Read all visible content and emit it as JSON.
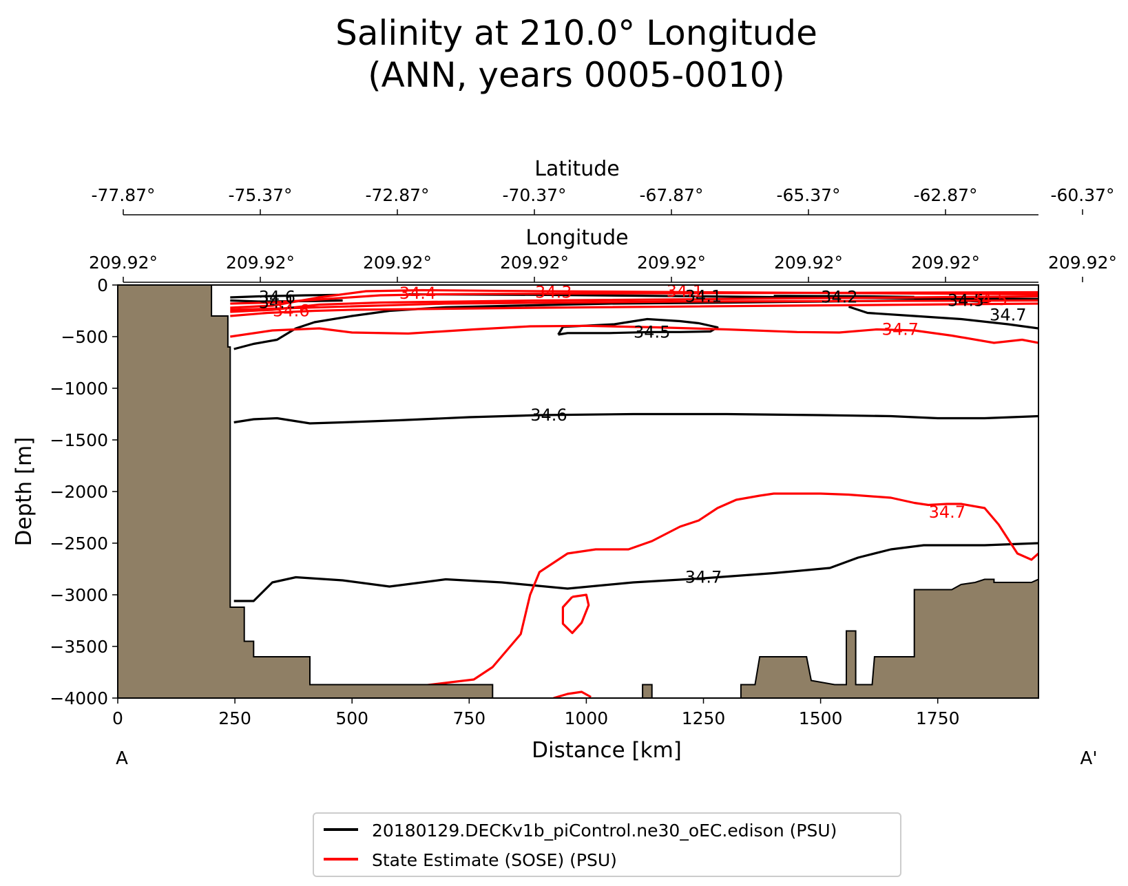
{
  "title_line1": "Salinity at 210.0° Longitude",
  "title_line2": "(ANN, years 0005-0010)",
  "chart_data": {
    "type": "contour",
    "xlabel": "Distance [km]",
    "ylabel": "Depth [m]",
    "xlim": [
      0,
      1965
    ],
    "ylim": [
      -4000,
      0
    ],
    "xticks": [
      0,
      250,
      500,
      750,
      1000,
      1250,
      1500,
      1750
    ],
    "yticks": [
      0,
      -500,
      -1000,
      -1500,
      -2000,
      -2500,
      -3000,
      -3500,
      -4000
    ],
    "start_label": "A",
    "end_label": "A'",
    "latitude_axis": {
      "label": "Latitude",
      "ticks": [
        "-77.87°",
        "-75.37°",
        "-72.87°",
        "-70.37°",
        "-67.87°",
        "-65.37°",
        "-62.87°",
        "-60.37°"
      ]
    },
    "longitude_axis": {
      "label": "Longitude",
      "ticks": [
        "209.92°",
        "209.92°",
        "209.92°",
        "209.92°",
        "209.92°",
        "209.92°",
        "209.92°",
        "209.92°"
      ]
    },
    "legend": [
      {
        "label": "20180129.DECKv1b_piControl.ne30_oEC.edison (PSU)",
        "color": "#000000"
      },
      {
        "label": "State Estimate (SOSE) (PSU)",
        "color": "#ff0000"
      }
    ],
    "colors": {
      "model": "#000000",
      "obs": "#ff0000",
      "land": "#8f7f65"
    },
    "bathymetry": [
      [
        0,
        0
      ],
      [
        200,
        0
      ],
      [
        200,
        -300
      ],
      [
        235,
        -300
      ],
      [
        235,
        -600
      ],
      [
        240,
        -600
      ],
      [
        240,
        -3120
      ],
      [
        270,
        -3120
      ],
      [
        270,
        -3450
      ],
      [
        290,
        -3450
      ],
      [
        290,
        -3600
      ],
      [
        410,
        -3600
      ],
      [
        410,
        -3870
      ],
      [
        800,
        -3870
      ],
      [
        800,
        -4000
      ],
      [
        1120,
        -4000
      ],
      [
        1120,
        -3870
      ],
      [
        1140,
        -3870
      ],
      [
        1140,
        -4000
      ],
      [
        1330,
        -4000
      ],
      [
        1330,
        -3870
      ],
      [
        1360,
        -3870
      ],
      [
        1370,
        -3600
      ],
      [
        1470,
        -3600
      ],
      [
        1480,
        -3830
      ],
      [
        1530,
        -3870
      ],
      [
        1555,
        -3870
      ],
      [
        1555,
        -3350
      ],
      [
        1575,
        -3350
      ],
      [
        1575,
        -3870
      ],
      [
        1610,
        -3870
      ],
      [
        1615,
        -3600
      ],
      [
        1700,
        -3600
      ],
      [
        1700,
        -2950
      ],
      [
        1780,
        -2950
      ],
      [
        1800,
        -2900
      ],
      [
        1830,
        -2880
      ],
      [
        1850,
        -2850
      ],
      [
        1870,
        -2850
      ],
      [
        1870,
        -2880
      ],
      [
        1950,
        -2880
      ],
      [
        1965,
        -2850
      ],
      [
        1965,
        -4000
      ],
      [
        0,
        -4000
      ]
    ],
    "model_contours": [
      {
        "level": 34.6,
        "label": "34.6",
        "label_at": [
          920,
          -1260
        ],
        "points": [
          [
            248,
            -1330
          ],
          [
            290,
            -1300
          ],
          [
            340,
            -1290
          ],
          [
            410,
            -1340
          ],
          [
            480,
            -1330
          ],
          [
            600,
            -1310
          ],
          [
            750,
            -1280
          ],
          [
            900,
            -1260
          ],
          [
            1100,
            -1250
          ],
          [
            1300,
            -1250
          ],
          [
            1500,
            -1260
          ],
          [
            1650,
            -1270
          ],
          [
            1750,
            -1290
          ],
          [
            1850,
            -1290
          ],
          [
            1965,
            -1270
          ]
        ]
      },
      {
        "level": 34.7,
        "label": "34.7",
        "label_at": [
          1250,
          -2830
        ],
        "points": [
          [
            248,
            -3060
          ],
          [
            290,
            -3060
          ],
          [
            330,
            -2880
          ],
          [
            380,
            -2830
          ],
          [
            480,
            -2860
          ],
          [
            580,
            -2920
          ],
          [
            700,
            -2850
          ],
          [
            820,
            -2880
          ],
          [
            960,
            -2940
          ],
          [
            1100,
            -2880
          ],
          [
            1250,
            -2840
          ],
          [
            1400,
            -2790
          ],
          [
            1520,
            -2740
          ],
          [
            1580,
            -2640
          ],
          [
            1650,
            -2560
          ],
          [
            1720,
            -2520
          ],
          [
            1850,
            -2520
          ],
          [
            1965,
            -2500
          ]
        ]
      },
      {
        "level": 34.5,
        "label": "34.5",
        "label_at": [
          1140,
          -455
        ],
        "points": [
          [
            940,
            -480
          ],
          [
            950,
            -405
          ],
          [
            1060,
            -380
          ],
          [
            1130,
            -330
          ],
          [
            1200,
            -350
          ],
          [
            1240,
            -370
          ],
          [
            1280,
            -410
          ],
          [
            1265,
            -450
          ],
          [
            1200,
            -455
          ],
          [
            1140,
            -455
          ],
          [
            1050,
            -465
          ],
          [
            960,
            -465
          ],
          [
            940,
            -480
          ]
        ]
      },
      {
        "level": 34.5,
        "label": "",
        "points": [
          [
            248,
            -620
          ],
          [
            290,
            -570
          ],
          [
            340,
            -530
          ],
          [
            380,
            -420
          ],
          [
            420,
            -360
          ],
          [
            500,
            -300
          ],
          [
            580,
            -250
          ],
          [
            700,
            -215
          ],
          [
            850,
            -200
          ],
          [
            1050,
            -180
          ],
          [
            1300,
            -170
          ],
          [
            1500,
            -160
          ],
          [
            1700,
            -150
          ],
          [
            1965,
            -140
          ]
        ]
      },
      {
        "level": 34.6,
        "label": "34.6",
        "label_at": [
          340,
          -115
        ],
        "points": [
          [
            240,
            -120
          ],
          [
            300,
            -110
          ],
          [
            400,
            -100
          ],
          [
            470,
            -95
          ]
        ]
      },
      {
        "level": 34.1,
        "label": "34.1",
        "label_at": [
          340,
          -170
        ],
        "points": [
          [
            240,
            -150
          ],
          [
            300,
            -160
          ],
          [
            420,
            -155
          ],
          [
            480,
            -150
          ]
        ]
      },
      {
        "level": 34.1,
        "label": "34.1",
        "label_at": [
          1250,
          -110
        ],
        "points": [
          [
            620,
            -90
          ],
          [
            900,
            -95
          ],
          [
            1250,
            -110
          ],
          [
            1600,
            -125
          ],
          [
            1965,
            -135
          ]
        ]
      },
      {
        "level": 34.2,
        "label": "34.2",
        "label_at": [
          1540,
          -115
        ],
        "points": [
          [
            1400,
            -105
          ],
          [
            1600,
            -110
          ],
          [
            1700,
            -115
          ]
        ]
      },
      {
        "level": 34.5,
        "label": "34.5",
        "label_at": [
          1810,
          -150
        ],
        "points": [
          [
            1700,
            -140
          ],
          [
            1800,
            -150
          ],
          [
            1860,
            -165
          ]
        ]
      },
      {
        "level": 34.7,
        "label": "34.7",
        "label_at": [
          1900,
          -290
        ],
        "points": [
          [
            1560,
            -210
          ],
          [
            1600,
            -270
          ],
          [
            1700,
            -300
          ],
          [
            1800,
            -330
          ],
          [
            1900,
            -380
          ],
          [
            1965,
            -420
          ]
        ]
      }
    ],
    "obs_contours": [
      {
        "level": 34.7,
        "label": "34.7",
        "label_at": [
          1670,
          -430
        ],
        "points": [
          [
            240,
            -500
          ],
          [
            330,
            -440
          ],
          [
            430,
            -420
          ],
          [
            500,
            -460
          ],
          [
            620,
            -470
          ],
          [
            760,
            -430
          ],
          [
            880,
            -400
          ],
          [
            1000,
            -395
          ],
          [
            1150,
            -410
          ],
          [
            1300,
            -430
          ],
          [
            1450,
            -455
          ],
          [
            1540,
            -460
          ],
          [
            1620,
            -430
          ],
          [
            1700,
            -440
          ],
          [
            1780,
            -490
          ],
          [
            1870,
            -560
          ],
          [
            1930,
            -530
          ],
          [
            1965,
            -560
          ]
        ]
      },
      {
        "level": 34.7,
        "label": "34.7",
        "label_at": [
          1770,
          -2200
        ],
        "points": [
          [
            530,
            -4000
          ],
          [
            650,
            -3880
          ],
          [
            760,
            -3820
          ],
          [
            800,
            -3700
          ],
          [
            860,
            -3380
          ],
          [
            880,
            -3000
          ],
          [
            900,
            -2780
          ],
          [
            960,
            -2600
          ],
          [
            1020,
            -2560
          ],
          [
            1090,
            -2560
          ],
          [
            1140,
            -2480
          ],
          [
            1200,
            -2340
          ],
          [
            1240,
            -2280
          ],
          [
            1280,
            -2160
          ],
          [
            1320,
            -2080
          ],
          [
            1370,
            -2040
          ],
          [
            1400,
            -2020
          ],
          [
            1500,
            -2020
          ],
          [
            1560,
            -2030
          ],
          [
            1650,
            -2060
          ],
          [
            1700,
            -2110
          ],
          [
            1730,
            -2130
          ],
          [
            1770,
            -2120
          ],
          [
            1800,
            -2120
          ],
          [
            1850,
            -2160
          ],
          [
            1880,
            -2320
          ],
          [
            1920,
            -2600
          ],
          [
            1950,
            -2660
          ],
          [
            1965,
            -2600
          ]
        ]
      },
      {
        "level": 34.7,
        "label": "",
        "points": [
          [
            970,
            -3020
          ],
          [
            1000,
            -3000
          ],
          [
            1005,
            -3100
          ],
          [
            990,
            -3270
          ],
          [
            970,
            -3370
          ],
          [
            950,
            -3280
          ],
          [
            950,
            -3120
          ],
          [
            970,
            -3020
          ]
        ]
      },
      {
        "level": 34.7,
        "label": "",
        "points": [
          [
            930,
            -4000
          ],
          [
            960,
            -3960
          ],
          [
            990,
            -3940
          ],
          [
            1010,
            -3990
          ]
        ]
      },
      {
        "level": 34.6,
        "label": "34.6",
        "label_at": [
          370,
          -250
        ],
        "points": [
          [
            240,
            -300
          ],
          [
            320,
            -270
          ],
          [
            420,
            -250
          ],
          [
            500,
            -240
          ],
          [
            700,
            -230
          ],
          [
            900,
            -220
          ],
          [
            1965,
            -180
          ]
        ]
      },
      {
        "level": 34.4,
        "label": "34.4",
        "label_at": [
          640,
          -80
        ],
        "points": [
          [
            240,
            -180
          ],
          [
            330,
            -170
          ],
          [
            430,
            -140
          ],
          [
            560,
            -100
          ],
          [
            680,
            -90
          ],
          [
            820,
            -85
          ],
          [
            1965,
            -70
          ]
        ]
      },
      {
        "level": 34.3,
        "label": "34.3",
        "label_at": [
          930,
          -70
        ],
        "points": [
          [
            240,
            -220
          ],
          [
            330,
            -200
          ],
          [
            430,
            -120
          ],
          [
            530,
            -60
          ],
          [
            650,
            -50
          ],
          [
            900,
            -60
          ],
          [
            1965,
            -90
          ]
        ]
      },
      {
        "level": 34.1,
        "label": "34.1",
        "label_at": [
          1210,
          -60
        ],
        "points": [
          [
            240,
            -260
          ],
          [
            330,
            -240
          ],
          [
            430,
            -190
          ],
          [
            560,
            -170
          ],
          [
            900,
            -150
          ],
          [
            1965,
            -110
          ]
        ]
      },
      {
        "level": 34.5,
        "label": "34.5",
        "label_at": [
          1860,
          -140
        ],
        "points": [
          [
            240,
            -240
          ],
          [
            400,
            -220
          ],
          [
            700,
            -180
          ],
          [
            1200,
            -160
          ],
          [
            1965,
            -150
          ]
        ]
      }
    ]
  }
}
